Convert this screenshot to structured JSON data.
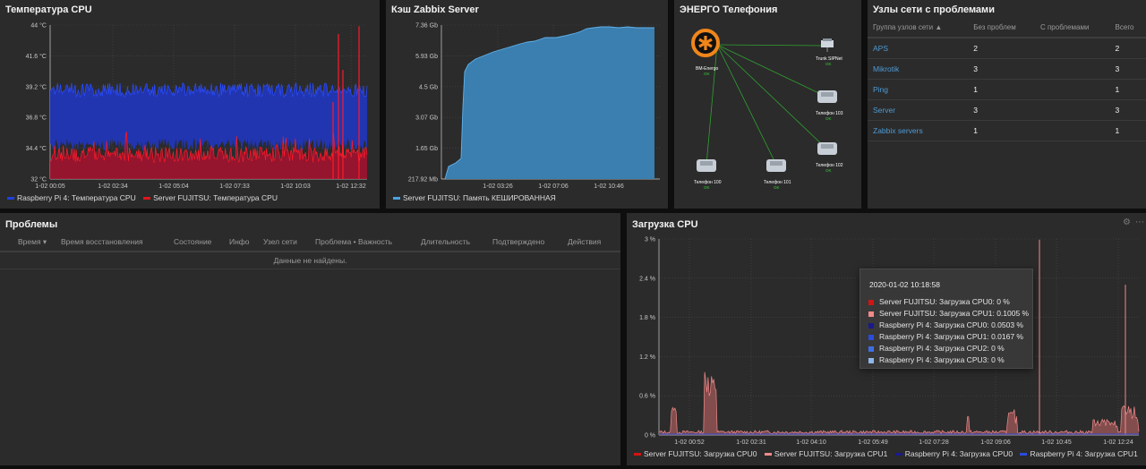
{
  "widgets": {
    "cpu_temp": {
      "title": "Температура CPU",
      "y_ticks": [
        "44 °C",
        "41.6 °C",
        "39.2 °C",
        "36.8 °C",
        "34.4 °C",
        "32 °C"
      ],
      "x_ticks": [
        "1-02 00:05",
        "1-02 02:34",
        "1-02 05:04",
        "1-02 07:33",
        "1-02 10:03",
        "1-02 12:32"
      ],
      "legend": [
        {
          "label": "Raspberry Pi 4: Температура CPU",
          "color": "#1f3fe0"
        },
        {
          "label": "Server FUJITSU: Температура CPU",
          "color": "#e0161e"
        }
      ]
    },
    "zabbix_cache": {
      "title": "Кэш Zabbix Server",
      "y_ticks": [
        "7.36 Gb",
        "5.93 Gb",
        "4.5 Gb",
        "3.07 Gb",
        "1.65 Gb",
        "217.92 Mb"
      ],
      "x_ticks": [
        "1-02 03:26",
        "1-02 07:06",
        "1-02 10:46"
      ],
      "legend": [
        {
          "label": "Server FUJITSU: Память КЕШИРОВАННАЯ",
          "color": "#4aa3df"
        }
      ]
    },
    "energo_map": {
      "title": "ЭНЕРГО Телефония",
      "nodes": [
        {
          "label": "BM-Energo",
          "status": "OK"
        },
        {
          "label": "Trunk SIPNet",
          "status": "OK"
        },
        {
          "label": "Телефон 103",
          "status": "OK"
        },
        {
          "label": "Телефон 102",
          "status": "OK"
        },
        {
          "label": "Телефон 100",
          "status": "OK"
        },
        {
          "label": "Телефон 101",
          "status": "OK"
        }
      ]
    },
    "hostgroups": {
      "title": "Узлы сети с проблемами",
      "columns": [
        "Группа узлов сети ▲",
        "Без проблем",
        "С проблемами",
        "Всего"
      ],
      "rows": [
        [
          "APS",
          "2",
          "",
          "2"
        ],
        [
          "Mikrotik",
          "3",
          "",
          "3"
        ],
        [
          "Ping",
          "1",
          "",
          "1"
        ],
        [
          "Server",
          "3",
          "",
          "3"
        ],
        [
          "Zabbix servers",
          "1",
          "",
          "1"
        ]
      ]
    },
    "problems": {
      "title": "Проблемы",
      "columns": [
        "Время ▾",
        "Время восстановления",
        "Состояние",
        "Инфо",
        "Узел сети",
        "Проблема • Важность",
        "Длительность",
        "Подтверждено",
        "Действия"
      ],
      "empty": "Данные не найдены."
    },
    "cpu_load": {
      "title": "Загрузка CPU",
      "y_ticks": [
        "3 %",
        "2.4 %",
        "1.8 %",
        "1.2 %",
        "0.6 %",
        "0 %"
      ],
      "x_ticks": [
        "1-02 00:52",
        "1-02 02:31",
        "1-02 04:10",
        "1-02 05:49",
        "1-02 07:28",
        "1-02 09:06",
        "1-02 10:45",
        "1-02 12:24"
      ],
      "legend": [
        {
          "label": "Server FUJITSU: Загрузка CPU0",
          "color": "#d11414"
        },
        {
          "label": "Server FUJITSU: Загрузка CPU1",
          "color": "#f08a8a"
        },
        {
          "label": "Raspberry Pi 4: Загрузка CPU0",
          "color": "#1a1a8c"
        },
        {
          "label": "Raspberry Pi 4: Загрузка CPU1",
          "color": "#2a4cdc"
        }
      ],
      "tooltip": {
        "title": "2020-01-02 10:18:58",
        "rows": [
          {
            "label": "Server FUJITSU: Загрузка CPU0: 0 %",
            "color": "#d11414"
          },
          {
            "label": "Server FUJITSU: Загрузка CPU1: 0.1005 %",
            "color": "#f08a8a"
          },
          {
            "label": "Raspberry Pi 4: Загрузка CPU0: 0.0503 %",
            "color": "#1a1a8c"
          },
          {
            "label": "Raspberry Pi 4: Загрузка CPU1: 0.0167 %",
            "color": "#2a4cdc"
          },
          {
            "label": "Raspberry Pi 4: Загрузка CPU2: 0 %",
            "color": "#3f6fe6"
          },
          {
            "label": "Raspberry Pi 4: Загрузка CPU3: 0 %",
            "color": "#8fb6ea"
          }
        ]
      }
    }
  }
}
